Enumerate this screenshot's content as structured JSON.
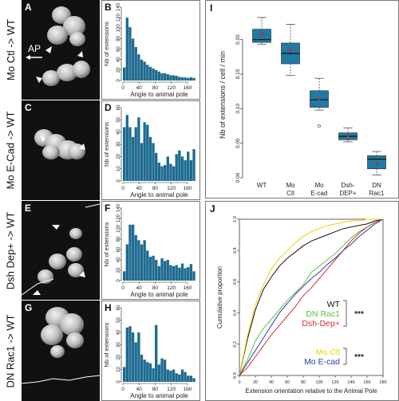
{
  "rows": [
    {
      "label": "Mo Ctl -> WT",
      "image_letter": "A",
      "hist_letter": "B",
      "annotation": "AP"
    },
    {
      "label": "Mo E-Cad -> WT",
      "image_letter": "C",
      "hist_letter": "D"
    },
    {
      "label": "Dsh Dep+ -> WT",
      "image_letter": "E",
      "hist_letter": "F"
    },
    {
      "label": "DN Rac1 -> WT",
      "image_letter": "G",
      "hist_letter": "H"
    }
  ],
  "panel_i_letter": "I",
  "panel_j_letter": "J",
  "colors": {
    "bar": "#1d6b90",
    "box": "#1f7ba3",
    "mean": "#d62020",
    "wt": "#111111",
    "dn_rac1": "#5fc040",
    "dsh": "#d63030",
    "mo_ctl": "#f0d000",
    "mo_ecad": "#2c3ea8"
  },
  "chart_data": [
    {
      "type": "bar",
      "panel": "B",
      "xlabel": "Angle to animal pole",
      "ylabel": "Nb of extensions",
      "xlim": [
        0,
        180
      ],
      "ylim": [
        0,
        140
      ],
      "xticks": [
        "0",
        "40",
        "80",
        "120",
        "160"
      ],
      "yticks": [
        "0",
        "20",
        "40",
        "60",
        "80",
        "100",
        "120",
        "140"
      ],
      "bin_width": 7.2,
      "values": [
        25,
        120,
        102,
        80,
        64,
        50,
        40,
        36,
        30,
        26,
        23,
        20,
        17,
        14,
        14,
        12,
        10,
        10,
        9,
        7,
        6,
        6,
        5,
        6,
        5
      ]
    },
    {
      "type": "bar",
      "panel": "D",
      "xlabel": "Angle to animal pole",
      "ylabel": "Nb of extensions",
      "xlim": [
        0,
        180
      ],
      "ylim": [
        0,
        60
      ],
      "xticks": [
        "0",
        "40",
        "80",
        "120",
        "160"
      ],
      "yticks": [
        "0",
        "10",
        "20",
        "30",
        "40",
        "50",
        "60"
      ],
      "bin_width": 7.2,
      "values": [
        44,
        54,
        44,
        36,
        44,
        52,
        31,
        48,
        46,
        36,
        31,
        23,
        15,
        12,
        13,
        20,
        14,
        12,
        22,
        25,
        20,
        17,
        24,
        17,
        26
      ]
    },
    {
      "type": "bar",
      "panel": "F",
      "xlabel": "Angle to animal pole",
      "ylabel": "Nb of extensions",
      "xlim": [
        0,
        180
      ],
      "ylim": [
        0,
        140
      ],
      "xticks": [
        "0",
        "40",
        "80",
        "120",
        "160"
      ],
      "yticks": [
        "0",
        "20",
        "40",
        "60",
        "80",
        "100",
        "120",
        "140"
      ],
      "bin_width": 7.2,
      "values": [
        18,
        70,
        108,
        108,
        88,
        78,
        70,
        78,
        58,
        46,
        48,
        40,
        28,
        43,
        38,
        40,
        30,
        28,
        30,
        25,
        33,
        24,
        26,
        32,
        18
      ]
    },
    {
      "type": "bar",
      "panel": "H",
      "xlabel": "Angle to animal pole",
      "ylabel": "Nb of extensions",
      "xlim": [
        0,
        180
      ],
      "ylim": [
        0,
        60
      ],
      "xticks": [
        "0",
        "40",
        "80",
        "120",
        "160"
      ],
      "yticks": [
        "0",
        "10",
        "20",
        "30",
        "40",
        "50",
        "60"
      ],
      "bin_width": 7.2,
      "values": [
        12,
        44,
        45,
        40,
        32,
        40,
        22,
        18,
        16,
        15,
        11,
        46,
        14,
        19,
        18,
        10,
        9,
        10,
        7,
        6,
        10,
        8,
        5,
        5,
        3
      ]
    },
    {
      "type": "box",
      "panel": "I",
      "ylabel": "Nb of extensions / cell / min",
      "ylim": [
        0,
        0.24
      ],
      "yticks": [
        "0.00",
        "0.05",
        "0.10",
        "0.15",
        "0.20"
      ],
      "categories": [
        "WT",
        "Mo\nCtl",
        "Mo\nE-cad",
        "Dsh-\nDEP+",
        "DN\nRac1"
      ],
      "boxes": [
        {
          "whisker_low": 0.193,
          "q1": 0.196,
          "median": 0.2,
          "q3": 0.215,
          "whisker_high": 0.232,
          "mean": 0.208,
          "outliers": []
        },
        {
          "whisker_low": 0.148,
          "q1": 0.165,
          "median": 0.18,
          "q3": 0.195,
          "whisker_high": 0.222,
          "mean": 0.184,
          "outliers": []
        },
        {
          "whisker_low": 0.098,
          "q1": 0.102,
          "median": 0.113,
          "q3": 0.126,
          "whisker_high": 0.144,
          "mean": 0.114,
          "outliers": [
            0.075
          ]
        },
        {
          "whisker_low": 0.052,
          "q1": 0.055,
          "median": 0.06,
          "q3": 0.065,
          "whisker_high": 0.072,
          "mean": 0.061,
          "outliers": []
        },
        {
          "whisker_low": 0.004,
          "q1": 0.013,
          "median": 0.027,
          "q3": 0.032,
          "whisker_high": 0.038,
          "mean": 0.021,
          "outliers": []
        }
      ]
    },
    {
      "type": "line",
      "panel": "J",
      "xlabel": "Extension orientation relative to the Animal Pole",
      "ylabel": "Cumulative proportion",
      "xlim": [
        0,
        180
      ],
      "ylim": [
        0,
        1
      ],
      "xticks": [
        "0",
        "20",
        "40",
        "60",
        "80",
        "100",
        "120",
        "140",
        "160",
        "180"
      ],
      "yticks": [
        "0.0",
        "0.2",
        "0.4",
        "0.6",
        "0.8",
        "1.0"
      ],
      "x": [
        0,
        10,
        20,
        30,
        40,
        50,
        60,
        70,
        80,
        90,
        100,
        110,
        120,
        130,
        140,
        150,
        160,
        170,
        180
      ],
      "series": [
        {
          "name": "WT",
          "values": [
            0,
            0.23,
            0.42,
            0.55,
            0.63,
            0.7,
            0.75,
            0.79,
            0.83,
            0.86,
            0.88,
            0.9,
            0.92,
            0.94,
            0.95,
            0.96,
            0.97,
            0.99,
            1.0
          ]
        },
        {
          "name": "DN Rac1",
          "values": [
            0,
            0.1,
            0.22,
            0.3,
            0.36,
            0.42,
            0.48,
            0.53,
            0.58,
            0.66,
            0.7,
            0.74,
            0.78,
            0.83,
            0.88,
            0.92,
            0.95,
            0.98,
            1.0
          ]
        },
        {
          "name": "Dsh-Dep+",
          "values": [
            0,
            0.05,
            0.12,
            0.19,
            0.26,
            0.32,
            0.38,
            0.44,
            0.51,
            0.56,
            0.62,
            0.68,
            0.74,
            0.8,
            0.86,
            0.91,
            0.95,
            0.98,
            1.0
          ]
        },
        {
          "name": "Mo Ctl",
          "values": [
            0,
            0.25,
            0.45,
            0.58,
            0.68,
            0.75,
            0.8,
            0.85,
            0.89,
            0.92,
            0.94,
            0.96,
            0.97,
            0.98,
            0.99,
            0.99,
            1.0,
            1.0,
            1.0
          ]
        },
        {
          "name": "Mo E-cad",
          "values": [
            0,
            0.08,
            0.16,
            0.24,
            0.32,
            0.4,
            0.46,
            0.52,
            0.57,
            0.62,
            0.66,
            0.71,
            0.75,
            0.8,
            0.84,
            0.89,
            0.93,
            0.97,
            1.0
          ]
        }
      ],
      "legend_groups": [
        {
          "entries": [
            "WT",
            "DN Rac1",
            "Dsh-Dep+"
          ],
          "significance": "***"
        },
        {
          "entries": [
            "Mo Ctl",
            "Mo E-cad"
          ],
          "significance": "***"
        }
      ]
    }
  ]
}
